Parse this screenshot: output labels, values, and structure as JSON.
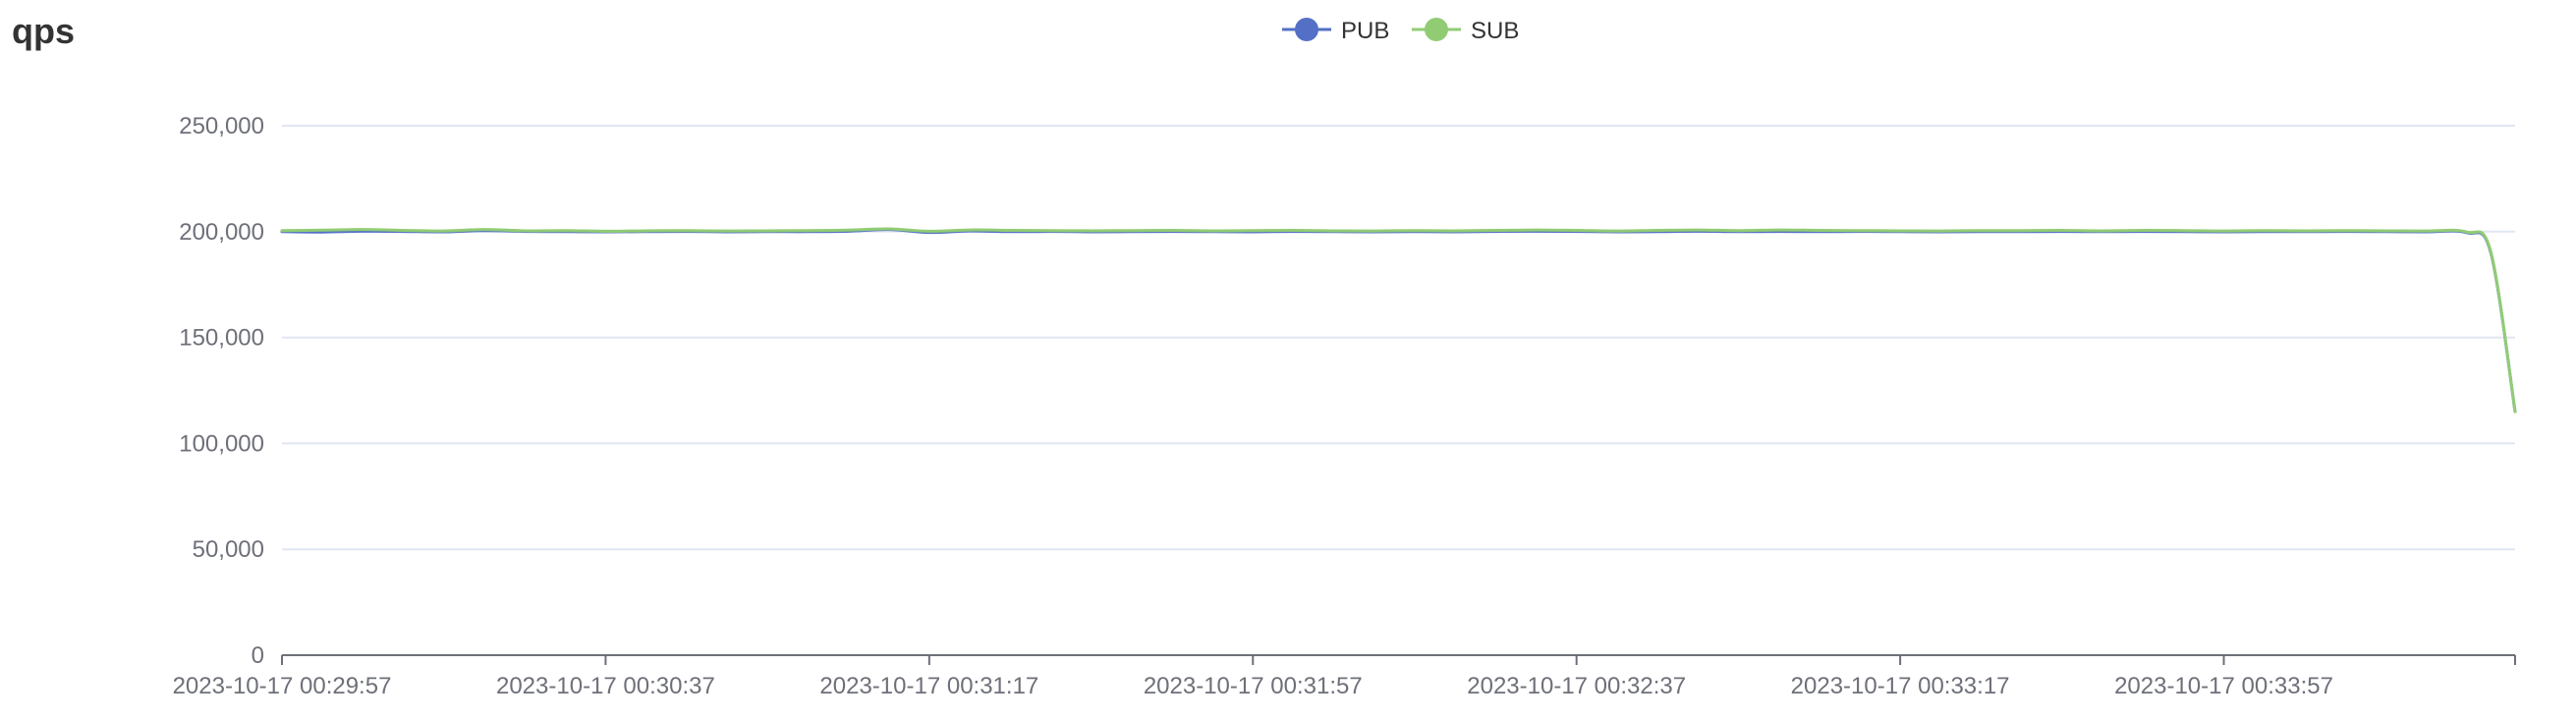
{
  "chart_data": {
    "type": "line",
    "title": "qps",
    "xlabel": "",
    "ylabel": "",
    "ylim": [
      0,
      250000
    ],
    "y_ticks": [
      "0",
      "50,000",
      "100,000",
      "150,000",
      "200,000",
      "250,000"
    ],
    "y_tick_values": [
      0,
      50000,
      100000,
      150000,
      200000,
      250000
    ],
    "x_ticks": [
      "2023-10-17 00:29:57",
      "2023-10-17 00:30:37",
      "2023-10-17 00:31:17",
      "2023-10-17 00:31:57",
      "2023-10-17 00:32:37",
      "2023-10-17 00:33:17",
      "2023-10-17 00:33:57"
    ],
    "x_range": [
      "2023-10-17 00:29:57",
      "2023-10-17 00:34:33"
    ],
    "grid": true,
    "legend_position": "top-center",
    "series": [
      {
        "name": "PUB",
        "color": "#5470c6",
        "points": [
          [
            "2023-10-17 00:29:57",
            200000
          ],
          [
            "2023-10-17 00:30:02",
            199800
          ],
          [
            "2023-10-17 00:30:07",
            200200
          ],
          [
            "2023-10-17 00:30:12",
            200100
          ],
          [
            "2023-10-17 00:30:17",
            199900
          ],
          [
            "2023-10-17 00:30:22",
            200500
          ],
          [
            "2023-10-17 00:30:27",
            200100
          ],
          [
            "2023-10-17 00:30:32",
            200000
          ],
          [
            "2023-10-17 00:30:37",
            199900
          ],
          [
            "2023-10-17 00:30:42",
            200000
          ],
          [
            "2023-10-17 00:30:47",
            200100
          ],
          [
            "2023-10-17 00:30:52",
            199900
          ],
          [
            "2023-10-17 00:30:57",
            200000
          ],
          [
            "2023-10-17 00:31:02",
            200000
          ],
          [
            "2023-10-17 00:31:07",
            200200
          ],
          [
            "2023-10-17 00:31:12",
            201000
          ],
          [
            "2023-10-17 00:31:17",
            199600
          ],
          [
            "2023-10-17 00:31:22",
            200300
          ],
          [
            "2023-10-17 00:31:27",
            200000
          ],
          [
            "2023-10-17 00:31:32",
            200100
          ],
          [
            "2023-10-17 00:31:37",
            199900
          ],
          [
            "2023-10-17 00:31:42",
            200000
          ],
          [
            "2023-10-17 00:31:47",
            200100
          ],
          [
            "2023-10-17 00:31:52",
            200000
          ],
          [
            "2023-10-17 00:31:57",
            199900
          ],
          [
            "2023-10-17 00:32:02",
            200100
          ],
          [
            "2023-10-17 00:32:07",
            200000
          ],
          [
            "2023-10-17 00:32:12",
            199900
          ],
          [
            "2023-10-17 00:32:17",
            200000
          ],
          [
            "2023-10-17 00:32:22",
            199900
          ],
          [
            "2023-10-17 00:32:27",
            200100
          ],
          [
            "2023-10-17 00:32:32",
            200200
          ],
          [
            "2023-10-17 00:32:37",
            200100
          ],
          [
            "2023-10-17 00:32:42",
            199900
          ],
          [
            "2023-10-17 00:32:47",
            200000
          ],
          [
            "2023-10-17 00:32:52",
            200200
          ],
          [
            "2023-10-17 00:32:57",
            200000
          ],
          [
            "2023-10-17 00:33:02",
            200100
          ],
          [
            "2023-10-17 00:33:07",
            200000
          ],
          [
            "2023-10-17 00:33:12",
            200100
          ],
          [
            "2023-10-17 00:33:17",
            200000
          ],
          [
            "2023-10-17 00:33:22",
            199900
          ],
          [
            "2023-10-17 00:33:27",
            200000
          ],
          [
            "2023-10-17 00:33:32",
            200000
          ],
          [
            "2023-10-17 00:33:37",
            200100
          ],
          [
            "2023-10-17 00:33:42",
            200000
          ],
          [
            "2023-10-17 00:33:47",
            200100
          ],
          [
            "2023-10-17 00:33:52",
            200000
          ],
          [
            "2023-10-17 00:33:57",
            199900
          ],
          [
            "2023-10-17 00:34:02",
            200000
          ],
          [
            "2023-10-17 00:34:07",
            200000
          ],
          [
            "2023-10-17 00:34:12",
            200100
          ],
          [
            "2023-10-17 00:34:17",
            200000
          ],
          [
            "2023-10-17 00:34:22",
            199900
          ],
          [
            "2023-10-17 00:34:27",
            199500
          ],
          [
            "2023-10-17 00:34:30",
            190000
          ],
          [
            "2023-10-17 00:34:33",
            115000
          ]
        ]
      },
      {
        "name": "SUB",
        "color": "#91cc75",
        "points": [
          [
            "2023-10-17 00:29:57",
            200500
          ],
          [
            "2023-10-17 00:30:02",
            200700
          ],
          [
            "2023-10-17 00:30:07",
            201000
          ],
          [
            "2023-10-17 00:30:12",
            200600
          ],
          [
            "2023-10-17 00:30:17",
            200300
          ],
          [
            "2023-10-17 00:30:22",
            201000
          ],
          [
            "2023-10-17 00:30:27",
            200400
          ],
          [
            "2023-10-17 00:30:32",
            200500
          ],
          [
            "2023-10-17 00:30:37",
            200200
          ],
          [
            "2023-10-17 00:30:42",
            200400
          ],
          [
            "2023-10-17 00:30:47",
            200500
          ],
          [
            "2023-10-17 00:30:52",
            200300
          ],
          [
            "2023-10-17 00:30:57",
            200400
          ],
          [
            "2023-10-17 00:31:02",
            200500
          ],
          [
            "2023-10-17 00:31:07",
            200700
          ],
          [
            "2023-10-17 00:31:12",
            201300
          ],
          [
            "2023-10-17 00:31:17",
            200200
          ],
          [
            "2023-10-17 00:31:22",
            200800
          ],
          [
            "2023-10-17 00:31:27",
            200600
          ],
          [
            "2023-10-17 00:31:32",
            200500
          ],
          [
            "2023-10-17 00:31:37",
            200400
          ],
          [
            "2023-10-17 00:31:42",
            200500
          ],
          [
            "2023-10-17 00:31:47",
            200600
          ],
          [
            "2023-10-17 00:31:52",
            200400
          ],
          [
            "2023-10-17 00:31:57",
            200500
          ],
          [
            "2023-10-17 00:32:02",
            200600
          ],
          [
            "2023-10-17 00:32:07",
            200400
          ],
          [
            "2023-10-17 00:32:12",
            200300
          ],
          [
            "2023-10-17 00:32:17",
            200500
          ],
          [
            "2023-10-17 00:32:22",
            200400
          ],
          [
            "2023-10-17 00:32:27",
            200600
          ],
          [
            "2023-10-17 00:32:32",
            200800
          ],
          [
            "2023-10-17 00:32:37",
            200600
          ],
          [
            "2023-10-17 00:32:42",
            200300
          ],
          [
            "2023-10-17 00:32:47",
            200600
          ],
          [
            "2023-10-17 00:32:52",
            200800
          ],
          [
            "2023-10-17 00:32:57",
            200500
          ],
          [
            "2023-10-17 00:33:02",
            200800
          ],
          [
            "2023-10-17 00:33:07",
            200600
          ],
          [
            "2023-10-17 00:33:12",
            200500
          ],
          [
            "2023-10-17 00:33:17",
            200400
          ],
          [
            "2023-10-17 00:33:22",
            200300
          ],
          [
            "2023-10-17 00:33:27",
            200500
          ],
          [
            "2023-10-17 00:33:32",
            200500
          ],
          [
            "2023-10-17 00:33:37",
            200600
          ],
          [
            "2023-10-17 00:33:42",
            200400
          ],
          [
            "2023-10-17 00:33:47",
            200600
          ],
          [
            "2023-10-17 00:33:52",
            200500
          ],
          [
            "2023-10-17 00:33:57",
            200300
          ],
          [
            "2023-10-17 00:34:02",
            200500
          ],
          [
            "2023-10-17 00:34:07",
            200400
          ],
          [
            "2023-10-17 00:34:12",
            200500
          ],
          [
            "2023-10-17 00:34:17",
            200400
          ],
          [
            "2023-10-17 00:34:22",
            200300
          ],
          [
            "2023-10-17 00:34:27",
            199800
          ],
          [
            "2023-10-17 00:34:30",
            190500
          ],
          [
            "2023-10-17 00:34:33",
            115000
          ]
        ]
      }
    ]
  },
  "colors": {
    "axis": "#6e7079",
    "grid": "#e0e6f1",
    "title": "#333333"
  }
}
